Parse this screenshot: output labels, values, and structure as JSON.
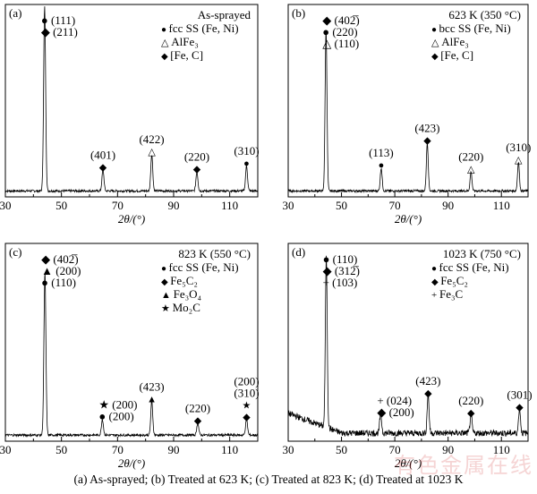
{
  "caption": "(a) As-sprayed; (b) Treated at 623 K; (c) Treated at 823 K; (d) Treated at 1023 K",
  "watermark": "有色金属在线",
  "chart_data": [
    {
      "type": "line",
      "panel_label": "(a)",
      "condition": "As-sprayed",
      "xlabel": "2θ/(°)",
      "xlim": [
        30,
        120
      ],
      "ylim": [
        0,
        100
      ],
      "x_ticks": [
        30,
        50,
        70,
        90,
        110
      ],
      "legend": [
        {
          "symbol": "●",
          "label": "fcc SS (Fe, Ni)"
        },
        {
          "symbol": "△",
          "label": "AlFe₃"
        },
        {
          "symbol": "◆",
          "label": "[Fe, C]"
        }
      ],
      "peaks": [
        {
          "x": 44.0,
          "y": 96
        },
        {
          "x": 64.8,
          "y": 11
        },
        {
          "x": 82.2,
          "y": 19
        },
        {
          "x": 98.3,
          "y": 10
        },
        {
          "x": 116.0,
          "y": 13
        }
      ],
      "annotations": [
        {
          "x": 44.0,
          "lines": [
            {
              "sym": "●",
              "text": "(111)"
            },
            {
              "sym": "◆",
              "text": "(211)"
            }
          ],
          "stack_side": "right"
        },
        {
          "x": 64.8,
          "lines": [
            {
              "sym": "",
              "text": "(401)"
            },
            {
              "sym": "◆",
              "text": ""
            }
          ],
          "stack_side": "center"
        },
        {
          "x": 82.2,
          "lines": [
            {
              "sym": "",
              "text": "(422)"
            },
            {
              "sym": "△",
              "text": ""
            }
          ],
          "stack_side": "center"
        },
        {
          "x": 98.3,
          "lines": [
            {
              "sym": "",
              "text": "(220)"
            },
            {
              "sym": "◆",
              "text": ""
            }
          ],
          "stack_side": "center"
        },
        {
          "x": 116.0,
          "lines": [
            {
              "sym": "",
              "text": "(310)"
            },
            {
              "sym": "●",
              "text": ""
            }
          ],
          "stack_side": "center"
        }
      ],
      "baseline_noise": "low"
    },
    {
      "type": "line",
      "panel_label": "(b)",
      "condition": "623 K (350 °C)",
      "xlabel": "2θ/(°)",
      "xlim": [
        30,
        120
      ],
      "ylim": [
        0,
        100
      ],
      "x_ticks": [
        30,
        50,
        70,
        90,
        110
      ],
      "legend": [
        {
          "symbol": "●",
          "label": "bcc SS (Fe, Ni)"
        },
        {
          "symbol": "△",
          "label": "AlFe₃"
        },
        {
          "symbol": "◆",
          "label": "[Fe, C]"
        }
      ],
      "peaks": [
        {
          "x": 44.2,
          "y": 84
        },
        {
          "x": 64.9,
          "y": 12
        },
        {
          "x": 82.2,
          "y": 25
        },
        {
          "x": 98.6,
          "y": 10
        },
        {
          "x": 116.4,
          "y": 15
        }
      ],
      "annotations": [
        {
          "x": 44.2,
          "lines": [
            {
              "sym": "◆",
              "text": "(402̅)"
            },
            {
              "sym": "●",
              "text": "(220)"
            },
            {
              "sym": "△",
              "text": "(110)"
            }
          ],
          "stack_side": "right"
        },
        {
          "x": 64.9,
          "lines": [
            {
              "sym": "",
              "text": "(113)"
            },
            {
              "sym": "●",
              "text": ""
            }
          ],
          "stack_side": "center"
        },
        {
          "x": 82.2,
          "lines": [
            {
              "sym": "",
              "text": "(423)"
            },
            {
              "sym": "◆",
              "text": ""
            }
          ],
          "stack_side": "center"
        },
        {
          "x": 98.6,
          "lines": [
            {
              "sym": "",
              "text": "(220)"
            },
            {
              "sym": "△",
              "text": ""
            }
          ],
          "stack_side": "center"
        },
        {
          "x": 116.4,
          "lines": [
            {
              "sym": "",
              "text": "(310)"
            },
            {
              "sym": "△",
              "text": ""
            }
          ],
          "stack_side": "center"
        }
      ],
      "baseline_noise": "low"
    },
    {
      "type": "line",
      "panel_label": "(c)",
      "condition": "823 K (550 °C)",
      "xlabel": "2θ/(°)",
      "xlim": [
        30,
        120
      ],
      "ylim": [
        0,
        100
      ],
      "x_ticks": [
        30,
        50,
        70,
        90,
        110
      ],
      "legend": [
        {
          "symbol": "●",
          "label": "fcc SS (Fe, Ni)"
        },
        {
          "symbol": "◆",
          "label": "Fe₅C₂"
        },
        {
          "symbol": "▲",
          "label": "Fe₃O₄"
        },
        {
          "symbol": "★",
          "label": "Mo₂C"
        }
      ],
      "peaks": [
        {
          "x": 44.1,
          "y": 82
        },
        {
          "x": 64.6,
          "y": 8
        },
        {
          "x": 82.2,
          "y": 17
        },
        {
          "x": 98.6,
          "y": 6
        },
        {
          "x": 116.0,
          "y": 8
        }
      ],
      "annotations": [
        {
          "x": 44.1,
          "lines": [
            {
              "sym": "◆",
              "text": "(402̅)"
            },
            {
              "sym": "▲",
              "text": "(200)"
            },
            {
              "sym": "●",
              "text": "(110)"
            }
          ],
          "stack_side": "right"
        },
        {
          "x": 64.6,
          "lines": [
            {
              "sym": "★",
              "text": "(200)"
            },
            {
              "sym": "●",
              "text": "(200)"
            }
          ],
          "stack_side": "right"
        },
        {
          "x": 82.2,
          "lines": [
            {
              "sym": "",
              "text": "(423)"
            },
            {
              "sym": "▲",
              "text": ""
            }
          ],
          "stack_side": "center"
        },
        {
          "x": 98.6,
          "lines": [
            {
              "sym": "",
              "text": "(220)"
            },
            {
              "sym": "◆",
              "text": ""
            }
          ],
          "stack_side": "center"
        },
        {
          "x": 116.0,
          "lines": [
            {
              "sym": "",
              "text": "(200)"
            },
            {
              "sym": "",
              "text": "(310)"
            },
            {
              "sym": "★",
              "text": ""
            },
            {
              "sym": "◆",
              "text": ""
            }
          ],
          "stack_side": "center"
        }
      ],
      "baseline_noise": "low"
    },
    {
      "type": "line",
      "panel_label": "(d)",
      "condition": "1023 K (750 °C)",
      "xlabel": "2θ/(°)",
      "xlim": [
        30,
        120
      ],
      "ylim": [
        0,
        100
      ],
      "x_ticks": [
        30,
        50,
        70,
        90,
        110
      ],
      "legend": [
        {
          "symbol": "●",
          "label": "fcc SS (Fe, Ni)"
        },
        {
          "symbol": "◆",
          "label": "Fe₅C₂"
        },
        {
          "symbol": "+",
          "label": "Fe₃C"
        }
      ],
      "peaks": [
        {
          "x": 44.3,
          "y": 86
        },
        {
          "x": 64.7,
          "y": 10
        },
        {
          "x": 82.5,
          "y": 20
        },
        {
          "x": 98.6,
          "y": 10
        },
        {
          "x": 116.8,
          "y": 13
        }
      ],
      "annotations": [
        {
          "x": 44.3,
          "lines": [
            {
              "sym": "●",
              "text": "(110)"
            },
            {
              "sym": "◆",
              "text": "(312̅)"
            },
            {
              "sym": "+",
              "text": "(103)"
            }
          ],
          "stack_side": "right"
        },
        {
          "x": 64.7,
          "lines": [
            {
              "sym": "+",
              "text": "(024)"
            },
            {
              "sym": "◆",
              "text": "(200)"
            }
          ],
          "stack_side": "right"
        },
        {
          "x": 82.5,
          "lines": [
            {
              "sym": "",
              "text": "(423)"
            },
            {
              "sym": "◆",
              "text": ""
            }
          ],
          "stack_side": "center"
        },
        {
          "x": 98.6,
          "lines": [
            {
              "sym": "",
              "text": "(220)"
            },
            {
              "sym": "◆",
              "text": ""
            }
          ],
          "stack_side": "center"
        },
        {
          "x": 116.8,
          "lines": [
            {
              "sym": "",
              "text": "(301)"
            },
            {
              "sym": "◆",
              "text": ""
            }
          ],
          "stack_side": "center"
        }
      ],
      "baseline_noise": "high"
    }
  ]
}
